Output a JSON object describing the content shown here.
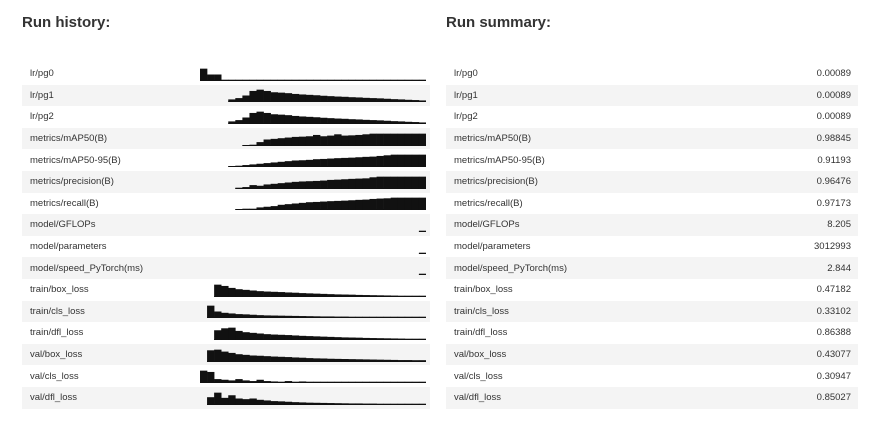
{
  "history": {
    "title": "Run history:",
    "rows": [
      {
        "label": "lr/pg0",
        "series": [
          0.95,
          0.5,
          0.5,
          0.1,
          0.1,
          0.1,
          0.1,
          0.1,
          0.1,
          0.1,
          0.1,
          0.1,
          0.1,
          0.1,
          0.1,
          0.1,
          0.1,
          0.1,
          0.1,
          0.1,
          0.1,
          0.1,
          0.1,
          0.1,
          0.1,
          0.1,
          0.1,
          0.1,
          0.1,
          0.1,
          0.1,
          0.1
        ]
      },
      {
        "label": "lr/pg1",
        "series": [
          null,
          null,
          null,
          null,
          0.2,
          0.3,
          0.5,
          0.85,
          0.95,
          0.85,
          0.75,
          0.72,
          0.68,
          0.62,
          0.58,
          0.55,
          0.52,
          0.48,
          0.45,
          0.42,
          0.4,
          0.37,
          0.35,
          0.32,
          0.3,
          0.28,
          0.25,
          0.22,
          0.2,
          0.17,
          0.15,
          0.12
        ]
      },
      {
        "label": "lr/pg2",
        "series": [
          null,
          null,
          null,
          null,
          0.2,
          0.3,
          0.5,
          0.85,
          0.95,
          0.85,
          0.75,
          0.72,
          0.68,
          0.62,
          0.58,
          0.55,
          0.52,
          0.48,
          0.45,
          0.42,
          0.4,
          0.37,
          0.35,
          0.32,
          0.3,
          0.28,
          0.25,
          0.22,
          0.2,
          0.17,
          0.15,
          0.12
        ]
      },
      {
        "label": "metrics/mAP50(B)",
        "series": [
          null,
          null,
          null,
          null,
          null,
          null,
          0.05,
          0.1,
          0.3,
          0.5,
          0.55,
          0.6,
          0.65,
          0.7,
          0.72,
          0.75,
          0.85,
          0.75,
          0.8,
          0.9,
          0.8,
          0.82,
          0.85,
          0.9,
          0.95,
          0.95,
          0.95,
          0.95,
          0.95,
          0.95,
          0.95,
          0.95
        ]
      },
      {
        "label": "metrics/mAP50-95(B)",
        "series": [
          null,
          null,
          null,
          null,
          0.05,
          0.1,
          0.15,
          0.2,
          0.25,
          0.3,
          0.35,
          0.4,
          0.45,
          0.5,
          0.52,
          0.55,
          0.6,
          0.62,
          0.65,
          0.68,
          0.7,
          0.72,
          0.75,
          0.78,
          0.8,
          0.85,
          0.9,
          0.95,
          0.95,
          0.95,
          0.95,
          0.95
        ]
      },
      {
        "label": "metrics/precision(B)",
        "series": [
          null,
          null,
          null,
          null,
          null,
          0.1,
          0.15,
          0.3,
          0.25,
          0.35,
          0.4,
          0.45,
          0.5,
          0.55,
          0.58,
          0.6,
          0.62,
          0.65,
          0.7,
          0.72,
          0.75,
          0.78,
          0.8,
          0.82,
          0.9,
          0.95,
          0.95,
          0.95,
          0.95,
          0.95,
          0.95,
          0.95
        ]
      },
      {
        "label": "metrics/recall(B)",
        "series": [
          null,
          null,
          null,
          null,
          null,
          0.05,
          0.1,
          0.1,
          0.2,
          0.25,
          0.3,
          0.4,
          0.45,
          0.5,
          0.55,
          0.6,
          0.62,
          0.65,
          0.68,
          0.7,
          0.72,
          0.75,
          0.78,
          0.8,
          0.85,
          0.88,
          0.9,
          0.95,
          0.95,
          0.95,
          0.95,
          0.95
        ]
      },
      {
        "label": "model/GFLOPs",
        "series": [
          null,
          null,
          null,
          null,
          null,
          null,
          null,
          null,
          null,
          null,
          null,
          null,
          null,
          null,
          null,
          null,
          null,
          null,
          null,
          null,
          null,
          null,
          null,
          null,
          null,
          null,
          null,
          null,
          null,
          null,
          null,
          0.1
        ]
      },
      {
        "label": "model/parameters",
        "series": [
          null,
          null,
          null,
          null,
          null,
          null,
          null,
          null,
          null,
          null,
          null,
          null,
          null,
          null,
          null,
          null,
          null,
          null,
          null,
          null,
          null,
          null,
          null,
          null,
          null,
          null,
          null,
          null,
          null,
          null,
          null,
          0.1
        ]
      },
      {
        "label": "model/speed_PyTorch(ms)",
        "series": [
          null,
          null,
          null,
          null,
          null,
          null,
          null,
          null,
          null,
          null,
          null,
          null,
          null,
          null,
          null,
          null,
          null,
          null,
          null,
          null,
          null,
          null,
          null,
          null,
          null,
          null,
          null,
          null,
          null,
          null,
          null,
          0.1
        ]
      },
      {
        "label": "train/box_loss",
        "series": [
          null,
          null,
          0.95,
          0.85,
          0.7,
          0.6,
          0.55,
          0.5,
          0.45,
          0.42,
          0.4,
          0.38,
          0.35,
          0.33,
          0.3,
          0.28,
          0.26,
          0.24,
          0.22,
          0.2,
          0.19,
          0.18,
          0.16,
          0.15,
          0.14,
          0.13,
          0.12,
          0.11,
          0.1,
          0.1,
          0.1,
          0.1
        ]
      },
      {
        "label": "train/cls_loss",
        "series": [
          null,
          0.95,
          0.5,
          0.4,
          0.35,
          0.3,
          0.28,
          0.25,
          0.22,
          0.2,
          0.19,
          0.18,
          0.17,
          0.16,
          0.15,
          0.14,
          0.13,
          0.12,
          0.12,
          0.11,
          0.11,
          0.1,
          0.1,
          0.1,
          0.1,
          0.1,
          0.1,
          0.1,
          0.1,
          0.1,
          0.1,
          0.1
        ]
      },
      {
        "label": "train/dfl_loss",
        "series": [
          null,
          null,
          0.75,
          0.9,
          0.95,
          0.7,
          0.6,
          0.55,
          0.5,
          0.45,
          0.42,
          0.4,
          0.38,
          0.35,
          0.32,
          0.3,
          0.28,
          0.26,
          0.24,
          0.22,
          0.2,
          0.19,
          0.18,
          0.16,
          0.15,
          0.14,
          0.13,
          0.12,
          0.11,
          0.1,
          0.1,
          0.1
        ]
      },
      {
        "label": "val/box_loss",
        "series": [
          null,
          0.9,
          0.95,
          0.8,
          0.7,
          0.6,
          0.55,
          0.5,
          0.48,
          0.45,
          0.42,
          0.4,
          0.38,
          0.35,
          0.33,
          0.3,
          0.28,
          0.27,
          0.25,
          0.24,
          0.23,
          0.22,
          0.21,
          0.2,
          0.19,
          0.18,
          0.17,
          0.16,
          0.15,
          0.15,
          0.14,
          0.14
        ]
      },
      {
        "label": "val/cls_loss",
        "series": [
          0.95,
          0.85,
          0.3,
          0.25,
          0.2,
          0.3,
          0.2,
          0.15,
          0.25,
          0.15,
          0.12,
          0.1,
          0.15,
          0.1,
          0.12,
          0.1,
          0.1,
          0.1,
          0.1,
          0.1,
          0.1,
          0.1,
          0.1,
          0.1,
          0.1,
          0.1,
          0.1,
          0.1,
          0.1,
          0.1,
          0.1,
          0.1
        ]
      },
      {
        "label": "val/dfl_loss",
        "series": [
          null,
          0.6,
          0.95,
          0.55,
          0.75,
          0.5,
          0.45,
          0.5,
          0.4,
          0.35,
          0.3,
          0.28,
          0.25,
          0.22,
          0.2,
          0.18,
          0.17,
          0.16,
          0.15,
          0.14,
          0.13,
          0.12,
          0.12,
          0.11,
          0.11,
          0.1,
          0.1,
          0.1,
          0.1,
          0.1,
          0.1,
          0.1
        ]
      }
    ]
  },
  "summary": {
    "title": "Run summary:",
    "rows": [
      {
        "label": "lr/pg0",
        "value": "0.00089"
      },
      {
        "label": "lr/pg1",
        "value": "0.00089"
      },
      {
        "label": "lr/pg2",
        "value": "0.00089"
      },
      {
        "label": "metrics/mAP50(B)",
        "value": "0.98845"
      },
      {
        "label": "metrics/mAP50-95(B)",
        "value": "0.91193"
      },
      {
        "label": "metrics/precision(B)",
        "value": "0.96476"
      },
      {
        "label": "metrics/recall(B)",
        "value": "0.97173"
      },
      {
        "label": "model/GFLOPs",
        "value": "8.205"
      },
      {
        "label": "model/parameters",
        "value": "3012993"
      },
      {
        "label": "model/speed_PyTorch(ms)",
        "value": "2.844"
      },
      {
        "label": "train/box_loss",
        "value": "0.47182"
      },
      {
        "label": "train/cls_loss",
        "value": "0.33102"
      },
      {
        "label": "train/dfl_loss",
        "value": "0.86388"
      },
      {
        "label": "val/box_loss",
        "value": "0.43077"
      },
      {
        "label": "val/cls_loss",
        "value": "0.30947"
      },
      {
        "label": "val/dfl_loss",
        "value": "0.85027"
      }
    ]
  },
  "colors": {
    "spark_fill": "#111111",
    "baseline": "#1a1a1a",
    "row_stripe": "#f4f4f4"
  }
}
